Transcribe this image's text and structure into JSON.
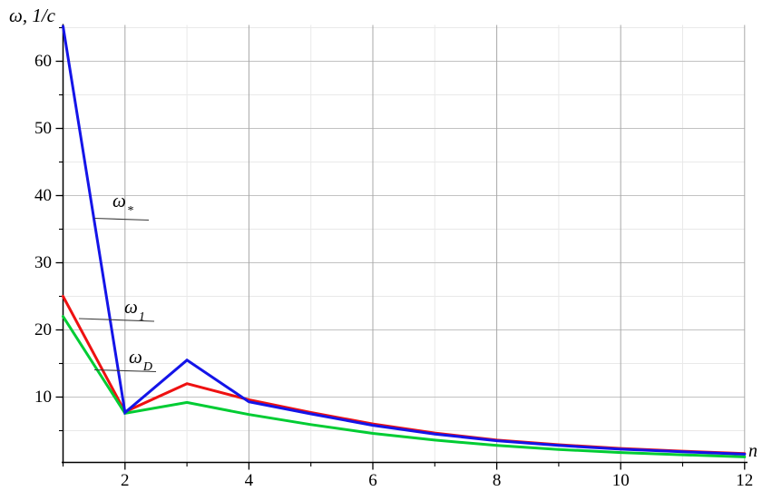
{
  "labels": {
    "y_axis_title": "ω, 1/c",
    "x_axis_title": "n"
  },
  "chart_data": {
    "type": "line",
    "title": "",
    "xlabel": "n",
    "ylabel": "ω, 1/c",
    "x": [
      1,
      2,
      3,
      4,
      5,
      6,
      7,
      8,
      9,
      10,
      11,
      12
    ],
    "series": [
      {
        "name": "omega_star",
        "label_base": "ω",
        "label_sub": "*",
        "color": "#1414e8",
        "values": [
          65.2,
          7.7,
          15.5,
          9.3,
          7.5,
          5.8,
          4.5,
          3.5,
          2.8,
          2.25,
          1.85,
          1.5
        ]
      },
      {
        "name": "omega_1",
        "label_base": "ω",
        "label_sub": "1",
        "color": "#ee1111",
        "values": [
          25.0,
          7.8,
          12.0,
          9.6,
          7.7,
          6.0,
          4.65,
          3.6,
          2.9,
          2.35,
          1.95,
          1.6
        ]
      },
      {
        "name": "omega_D",
        "label_base": "ω",
        "label_sub": "D",
        "color": "#00cc33",
        "values": [
          22.0,
          7.6,
          9.2,
          7.4,
          5.9,
          4.6,
          3.6,
          2.8,
          2.2,
          1.75,
          1.4,
          1.1
        ]
      }
    ],
    "xlim": [
      1,
      12
    ],
    "ylim": [
      0.3,
      65.4
    ],
    "x_major_ticks": [
      2,
      4,
      6,
      8,
      10,
      12
    ],
    "x_minor_ticks": [
      1,
      3,
      5,
      7,
      9,
      11
    ],
    "y_major_ticks": [
      10,
      20,
      30,
      40,
      50,
      60
    ],
    "y_minor_ticks": [
      5,
      15,
      25,
      35,
      45,
      55,
      65
    ],
    "grid": true,
    "legend_position": "inline-callouts",
    "style": {
      "axis_color": "#000000",
      "major_grid_x_color": "#a8a8a8",
      "major_grid_y_color": "#c2c2c2",
      "minor_grid_color": "#e9e9e9",
      "callout_color": "#3a3a3a"
    }
  }
}
